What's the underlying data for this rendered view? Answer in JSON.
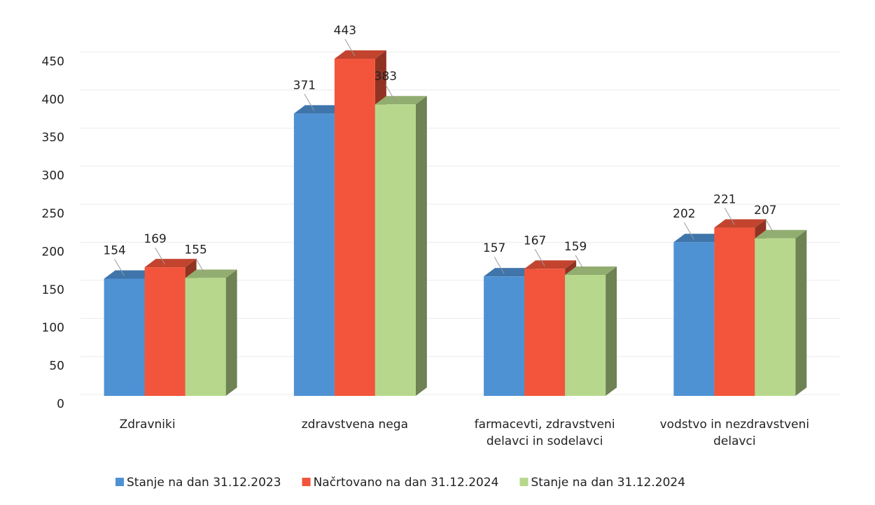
{
  "chart_data": {
    "type": "bar3d",
    "categories": [
      "Zdravniki",
      "zdravstvena nega",
      "farmacevti, zdravstveni delavci in sodelavci",
      "vodstvo in nezdravstveni delavci"
    ],
    "series": [
      {
        "name": "Stanje na dan 31.12.2023",
        "color": "#4f92d4",
        "values": [
          154,
          371,
          157,
          202
        ]
      },
      {
        "name": "Načrtovano na dan 31.12.2024",
        "color": "#f2553b",
        "values": [
          169,
          443,
          167,
          221
        ]
      },
      {
        "name": "Stanje na dan 31.12.2024",
        "color": "#b7d88c",
        "values": [
          155,
          383,
          159,
          207
        ]
      }
    ],
    "ylim": [
      0,
      500
    ],
    "yticks": [
      0,
      50,
      100,
      150,
      200,
      250,
      300,
      350,
      400,
      450
    ],
    "grid": true,
    "legend": "bottom"
  }
}
